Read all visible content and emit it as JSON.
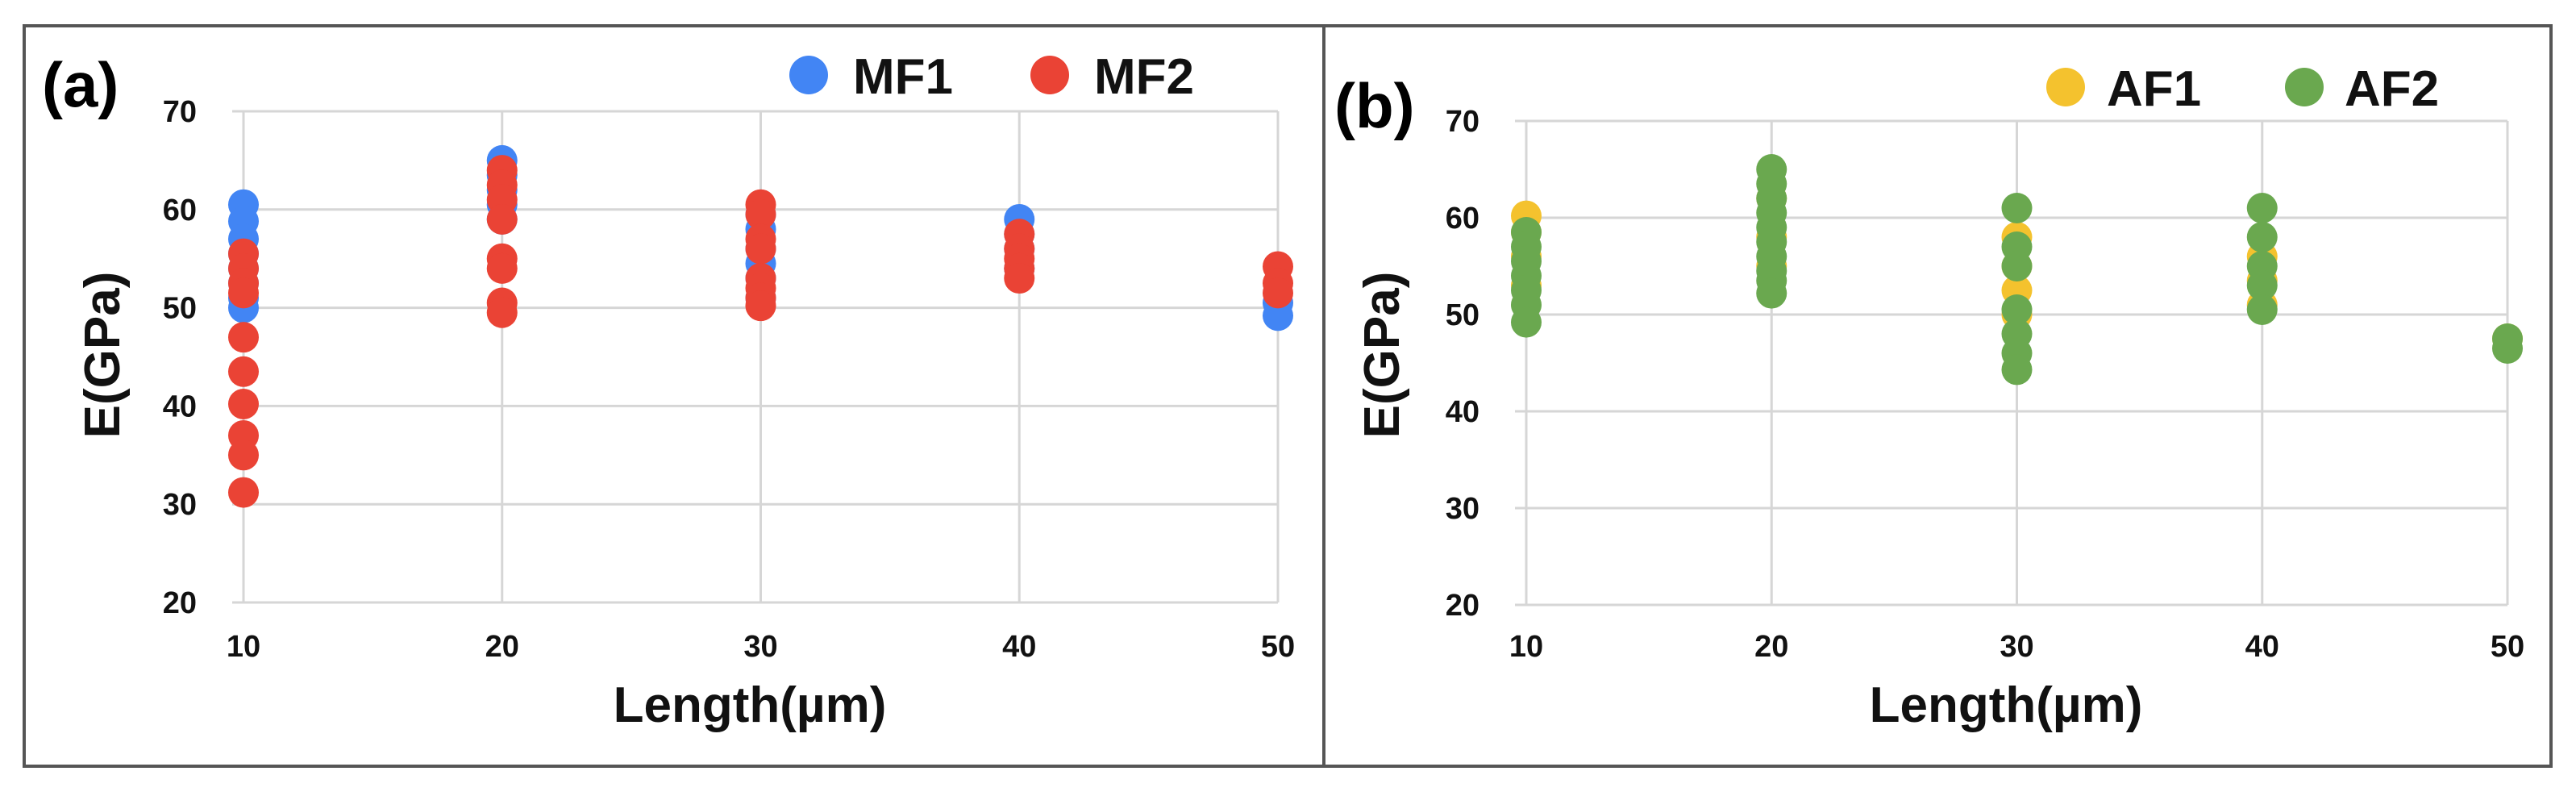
{
  "chart_data": [
    {
      "type": "scatter",
      "panel_label": "(a)",
      "xlabel": "Length(µm)",
      "ylabel": "E(GPa)",
      "x_ticks": [
        10,
        20,
        30,
        40,
        50
      ],
      "y_ticks": [
        20,
        30,
        40,
        50,
        60,
        70
      ],
      "xlim": [
        10,
        50
      ],
      "ylim": [
        20,
        70
      ],
      "grid": true,
      "legend_position": "top-right",
      "series": [
        {
          "name": "MF1",
          "color": "#4285f4",
          "points": [
            [
              10,
              60.5
            ],
            [
              10,
              58.8
            ],
            [
              10,
              57.0
            ],
            [
              10,
              55.5
            ],
            [
              10,
              54.0
            ],
            [
              10,
              52.5
            ],
            [
              10,
              51.0
            ],
            [
              10,
              50.0
            ],
            [
              20,
              65.0
            ],
            [
              20,
              63.5
            ],
            [
              20,
              62.0
            ],
            [
              20,
              60.5
            ],
            [
              20,
              59.0
            ],
            [
              30,
              59.5
            ],
            [
              30,
              58.0
            ],
            [
              30,
              56.0
            ],
            [
              30,
              54.5
            ],
            [
              30,
              53.0
            ],
            [
              30,
              51.0
            ],
            [
              40,
              59.0
            ],
            [
              40,
              57.5
            ],
            [
              40,
              56.0
            ],
            [
              40,
              54.0
            ],
            [
              50,
              50.5
            ],
            [
              50,
              49.2
            ]
          ]
        },
        {
          "name": "MF2",
          "color": "#ea4335",
          "points": [
            [
              10,
              55.5
            ],
            [
              10,
              54.0
            ],
            [
              10,
              52.5
            ],
            [
              10,
              51.5
            ],
            [
              10,
              47.0
            ],
            [
              10,
              43.5
            ],
            [
              10,
              40.2
            ],
            [
              10,
              37.0
            ],
            [
              10,
              35.0
            ],
            [
              10,
              31.2
            ],
            [
              20,
              64.0
            ],
            [
              20,
              62.5
            ],
            [
              20,
              61.0
            ],
            [
              20,
              59.0
            ],
            [
              20,
              55.0
            ],
            [
              20,
              54.0
            ],
            [
              20,
              50.5
            ],
            [
              20,
              49.5
            ],
            [
              30,
              60.5
            ],
            [
              30,
              59.5
            ],
            [
              30,
              57.0
            ],
            [
              30,
              56.0
            ],
            [
              30,
              53.0
            ],
            [
              30,
              52.0
            ],
            [
              30,
              51.0
            ],
            [
              30,
              50.2
            ],
            [
              40,
              57.5
            ],
            [
              40,
              56.0
            ],
            [
              40,
              55.0
            ],
            [
              40,
              54.0
            ],
            [
              40,
              53.0
            ],
            [
              50,
              54.2
            ],
            [
              50,
              52.5
            ],
            [
              50,
              51.5
            ]
          ]
        }
      ]
    },
    {
      "type": "scatter",
      "panel_label": "(b)",
      "xlabel": "Length(µm)",
      "ylabel": "E(GPa)",
      "x_ticks": [
        10,
        20,
        30,
        40,
        50
      ],
      "y_ticks": [
        20,
        30,
        40,
        50,
        60,
        70
      ],
      "xlim": [
        10,
        50
      ],
      "ylim": [
        20,
        70
      ],
      "grid": true,
      "legend_position": "top-right",
      "series": [
        {
          "name": "AF1",
          "color": "#f4c22e",
          "points": [
            [
              10,
              60.2
            ],
            [
              10,
              58.5
            ],
            [
              10,
              56.0
            ],
            [
              10,
              53.0
            ],
            [
              20,
              62.0
            ],
            [
              20,
              58.0
            ],
            [
              20,
              55.0
            ],
            [
              30,
              58.0
            ],
            [
              30,
              55.0
            ],
            [
              30,
              52.5
            ],
            [
              30,
              50.0
            ],
            [
              40,
              56.0
            ],
            [
              40,
              53.5
            ],
            [
              40,
              51.0
            ],
            [
              50,
              47.5
            ]
          ]
        },
        {
          "name": "AF2",
          "color": "#6aa84f",
          "points": [
            [
              10,
              58.5
            ],
            [
              10,
              57.0
            ],
            [
              10,
              55.5
            ],
            [
              10,
              54.0
            ],
            [
              10,
              52.5
            ],
            [
              10,
              51.0
            ],
            [
              10,
              49.2
            ],
            [
              20,
              65.0
            ],
            [
              20,
              63.5
            ],
            [
              20,
              62.0
            ],
            [
              20,
              60.5
            ],
            [
              20,
              59.0
            ],
            [
              20,
              57.5
            ],
            [
              20,
              56.0
            ],
            [
              20,
              54.5
            ],
            [
              20,
              53.5
            ],
            [
              20,
              52.2
            ],
            [
              30,
              61.0
            ],
            [
              30,
              57.0
            ],
            [
              30,
              55.0
            ],
            [
              30,
              50.5
            ],
            [
              30,
              48.0
            ],
            [
              30,
              46.0
            ],
            [
              30,
              44.3
            ],
            [
              40,
              61.0
            ],
            [
              40,
              58.0
            ],
            [
              40,
              55.0
            ],
            [
              40,
              53.0
            ],
            [
              40,
              50.5
            ],
            [
              50,
              47.5
            ],
            [
              50,
              46.5
            ]
          ]
        }
      ]
    }
  ]
}
